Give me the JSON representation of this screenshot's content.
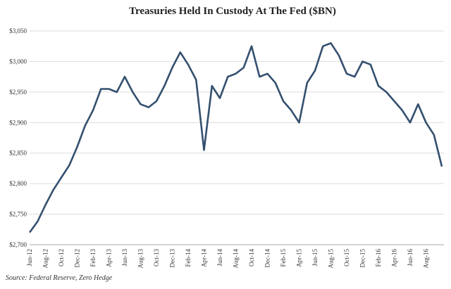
{
  "chart_data": {
    "type": "line",
    "title": "Treasuries Held In Custody At The Fed ($BN)",
    "source": "Source: Federal Reserve, Zero Hedge",
    "categories": [
      "Jun-12",
      null,
      "Aug-12",
      null,
      "Oct-12",
      null,
      "Dec-12",
      null,
      "Feb-13",
      null,
      "Apr-13",
      null,
      "Jun-13",
      null,
      "Aug-13",
      null,
      "Oct-13",
      null,
      "Dec-13",
      null,
      "Feb-14",
      null,
      "Apr-14",
      null,
      "Jun-14",
      null,
      "Aug-14",
      null,
      "Oct-14",
      null,
      "Dec-14",
      null,
      "Feb-15",
      null,
      "Apr-15",
      null,
      "Jun-15",
      null,
      "Aug-15",
      null,
      "Oct-15",
      null,
      "Dec-15",
      null,
      "Feb-16",
      null,
      "Apr-16",
      null,
      "Jun-16",
      null,
      "Aug-16",
      null,
      null
    ],
    "series": [
      {
        "name": "Treasuries Held In Custody",
        "color": "#34506f",
        "values": [
          2720,
          2738,
          2765,
          2790,
          2810,
          2830,
          2860,
          2895,
          2920,
          2955,
          2955,
          2950,
          2975,
          2950,
          2930,
          2925,
          2935,
          2960,
          2990,
          3015,
          2995,
          2970,
          2855,
          2960,
          2940,
          2975,
          2980,
          2990,
          3025,
          2975,
          2980,
          2965,
          2935,
          2920,
          2900,
          2965,
          2985,
          3025,
          3030,
          3010,
          2980,
          2975,
          3000,
          2995,
          2960,
          2950,
          2935,
          2920,
          2900,
          2930,
          2900,
          2880,
          2828
        ]
      }
    ],
    "ylim": [
      2700,
      3050
    ],
    "yticks": [
      {
        "value": 2700,
        "label": "$2,700"
      },
      {
        "value": 2750,
        "label": "$2,750"
      },
      {
        "value": 2800,
        "label": "$2,800"
      },
      {
        "value": 2850,
        "label": "$2,850"
      },
      {
        "value": 2900,
        "label": "$2,900"
      },
      {
        "value": 2950,
        "label": "$2,950"
      },
      {
        "value": 3000,
        "label": "$3,000"
      },
      {
        "value": 3050,
        "label": "$3,050"
      }
    ],
    "grid": true
  }
}
